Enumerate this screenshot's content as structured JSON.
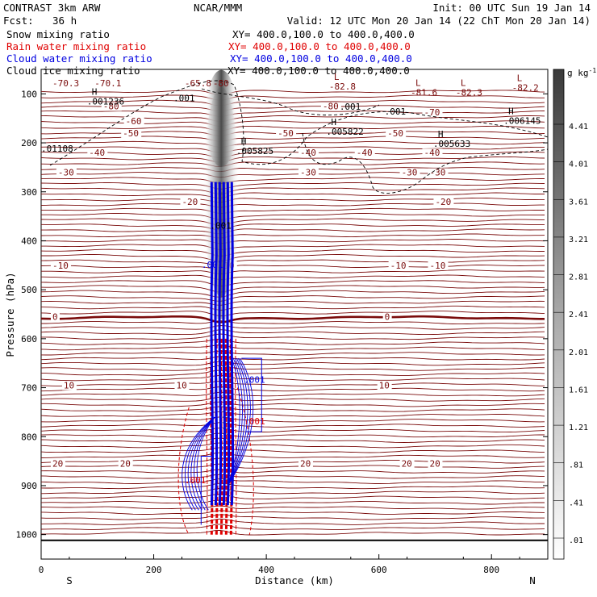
{
  "header": {
    "title_left": "CONTRAST  3km ARW",
    "fcst_label": "Fcst:",
    "fcst_value": "36 h",
    "center": "NCAR/MMM",
    "init": "Init: 00 UTC Sun 19 Jan 14",
    "valid": "Valid: 12 UTC Mon 20 Jan 14 (22 ChT Mon 20 Jan 14)"
  },
  "legend": [
    {
      "label": "Snow mixing ratio",
      "xy": "XY= 400.0,100.0 to 400.0,400.0",
      "color": "#000000"
    },
    {
      "label": "Rain water mixing ratio",
      "xy": "XY= 400.0,100.0 to 400.0,400.0",
      "color": "#e00000"
    },
    {
      "label": "Cloud water mixing ratio",
      "xy": "XY= 400.0,100.0 to 400.0,400.0",
      "color": "#0000e0"
    },
    {
      "label": "Cloud ice mixing ratio",
      "xy": "XY= 400.0,100.0 to 400.0,400.0",
      "color": "#000000"
    }
  ],
  "chart_data": {
    "type": "contour",
    "xlabel": "Distance (km)",
    "ylabel": "Pressure (hPa)",
    "xlim": [
      0,
      900
    ],
    "ylim": [
      1050,
      50
    ],
    "xticks": [
      0,
      200,
      400,
      600,
      800
    ],
    "yticks": [
      100,
      200,
      300,
      400,
      500,
      600,
      700,
      800,
      900,
      1000
    ],
    "end_labels": {
      "left": "S",
      "right": "N"
    },
    "shading_field": "Snow mixing ratio (shaded)",
    "colorbar": {
      "unit": "g kg",
      "unit_exp": "-1",
      "levels": [
        "4.41",
        "4.01",
        "3.61",
        "3.21",
        "2.81",
        "2.41",
        "2.01",
        "1.61",
        "1.21",
        ".81",
        ".41",
        ".01"
      ]
    },
    "temperature_isotherms": [
      {
        "label": "-80",
        "p": 130,
        "text_x": [
          110,
          500
        ]
      },
      {
        "label": "-70",
        "p": 142,
        "text_x": [
          680
        ]
      },
      {
        "label": "-60",
        "p": 160,
        "text_x": [
          150
        ]
      },
      {
        "label": "-50",
        "p": 185,
        "text_x": [
          145,
          420,
          615
        ]
      },
      {
        "label": "-40",
        "p": 225,
        "text_x": [
          85,
          460,
          560,
          680
        ]
      },
      {
        "label": "-30",
        "p": 265,
        "text_x": [
          30,
          460,
          640,
          690
        ]
      },
      {
        "label": "-20",
        "p": 325,
        "text_x": [
          250,
          700
        ]
      },
      {
        "label": "-10",
        "p": 455,
        "text_x": [
          20,
          315,
          620,
          690
        ]
      },
      {
        "label": "0",
        "p": 560,
        "text_x": [
          20,
          610
        ]
      },
      {
        "label": "10",
        "p": 700,
        "text_x": [
          40,
          240,
          600
        ]
      },
      {
        "label": "20",
        "p": 860,
        "text_x": [
          20,
          140,
          460,
          640,
          690
        ]
      }
    ],
    "pressure_extrema": [
      {
        "kind": "H",
        "value": ".001236",
        "x": 90,
        "p": 118
      },
      {
        "kind": "H",
        "value": ".005822",
        "x": 515,
        "p": 180
      },
      {
        "kind": "H",
        "value": ".005825",
        "x": 355,
        "p": 220
      },
      {
        "kind": "H",
        "value": ".005633",
        "x": 705,
        "p": 205
      },
      {
        "kind": "H",
        "value": ".006145",
        "x": 830,
        "p": 158
      },
      {
        "kind": "L",
        "value": "-82.8",
        "x": 520,
        "p": 88
      },
      {
        "kind": "L",
        "value": "-81.6",
        "x": 665,
        "p": 100
      },
      {
        "kind": "L",
        "value": "-82.3",
        "x": 745,
        "p": 100
      },
      {
        "kind": "L",
        "value": "-82.2",
        "x": 845,
        "p": 90
      }
    ],
    "top_labels": [
      "-70.3",
      "-70.1",
      "-65.8",
      "-80"
    ],
    "misc_labels": [
      ".01108",
      ".001",
      ".001",
      ".001",
      ".001",
      ".001",
      ".001",
      ".001",
      ".001"
    ],
    "updraft_column_center_km": 320
  }
}
